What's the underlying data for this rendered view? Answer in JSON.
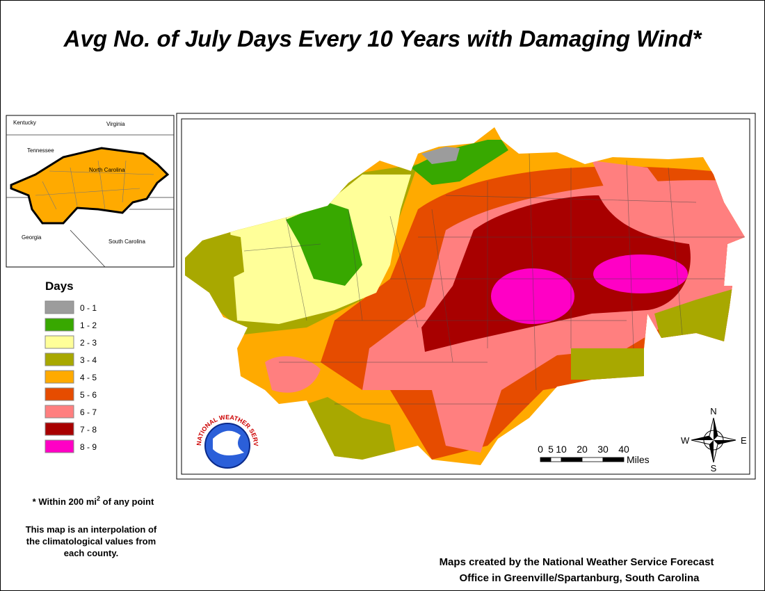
{
  "title": "Avg No. of July Days Every 10 Years with Damaging Wind*",
  "inset": {
    "labels": [
      "Kentucky",
      "Virginia",
      "Tennessee",
      "North Carolina",
      "Georgia",
      "South Carolina"
    ]
  },
  "legend": {
    "title": "Days",
    "items": [
      {
        "label": "0 - 1",
        "color": "#9c9c9c"
      },
      {
        "label": "1 - 2",
        "color": "#38a800"
      },
      {
        "label": "2 - 3",
        "color": "#ffff99"
      },
      {
        "label": "3 - 4",
        "color": "#a8a800"
      },
      {
        "label": "4 - 5",
        "color": "#ffaa00"
      },
      {
        "label": "5 - 6",
        "color": "#e64c00"
      },
      {
        "label": "6 - 7",
        "color": "#ff7f7f"
      },
      {
        "label": "7 - 8",
        "color": "#a80000"
      },
      {
        "label": "8 - 9",
        "color": "#ff00c5"
      }
    ]
  },
  "footnote": {
    "text": "* Within 200 mi",
    "sup": "2",
    "tail": " of any point"
  },
  "note": [
    "This map is an interpolation of",
    "the climatological values from",
    "each county."
  ],
  "credit": [
    "Maps created by the National Weather Service Forecast",
    "Office in Greenville/Spartanburg, South Carolina"
  ],
  "scale": {
    "ticks": [
      0,
      5,
      10,
      20,
      30,
      40
    ],
    "unit": "Miles"
  },
  "compass": {
    "n": "N",
    "s": "S",
    "e": "E",
    "w": "W"
  },
  "logo": {
    "text": "NATIONAL WEATHER SERVICE"
  }
}
